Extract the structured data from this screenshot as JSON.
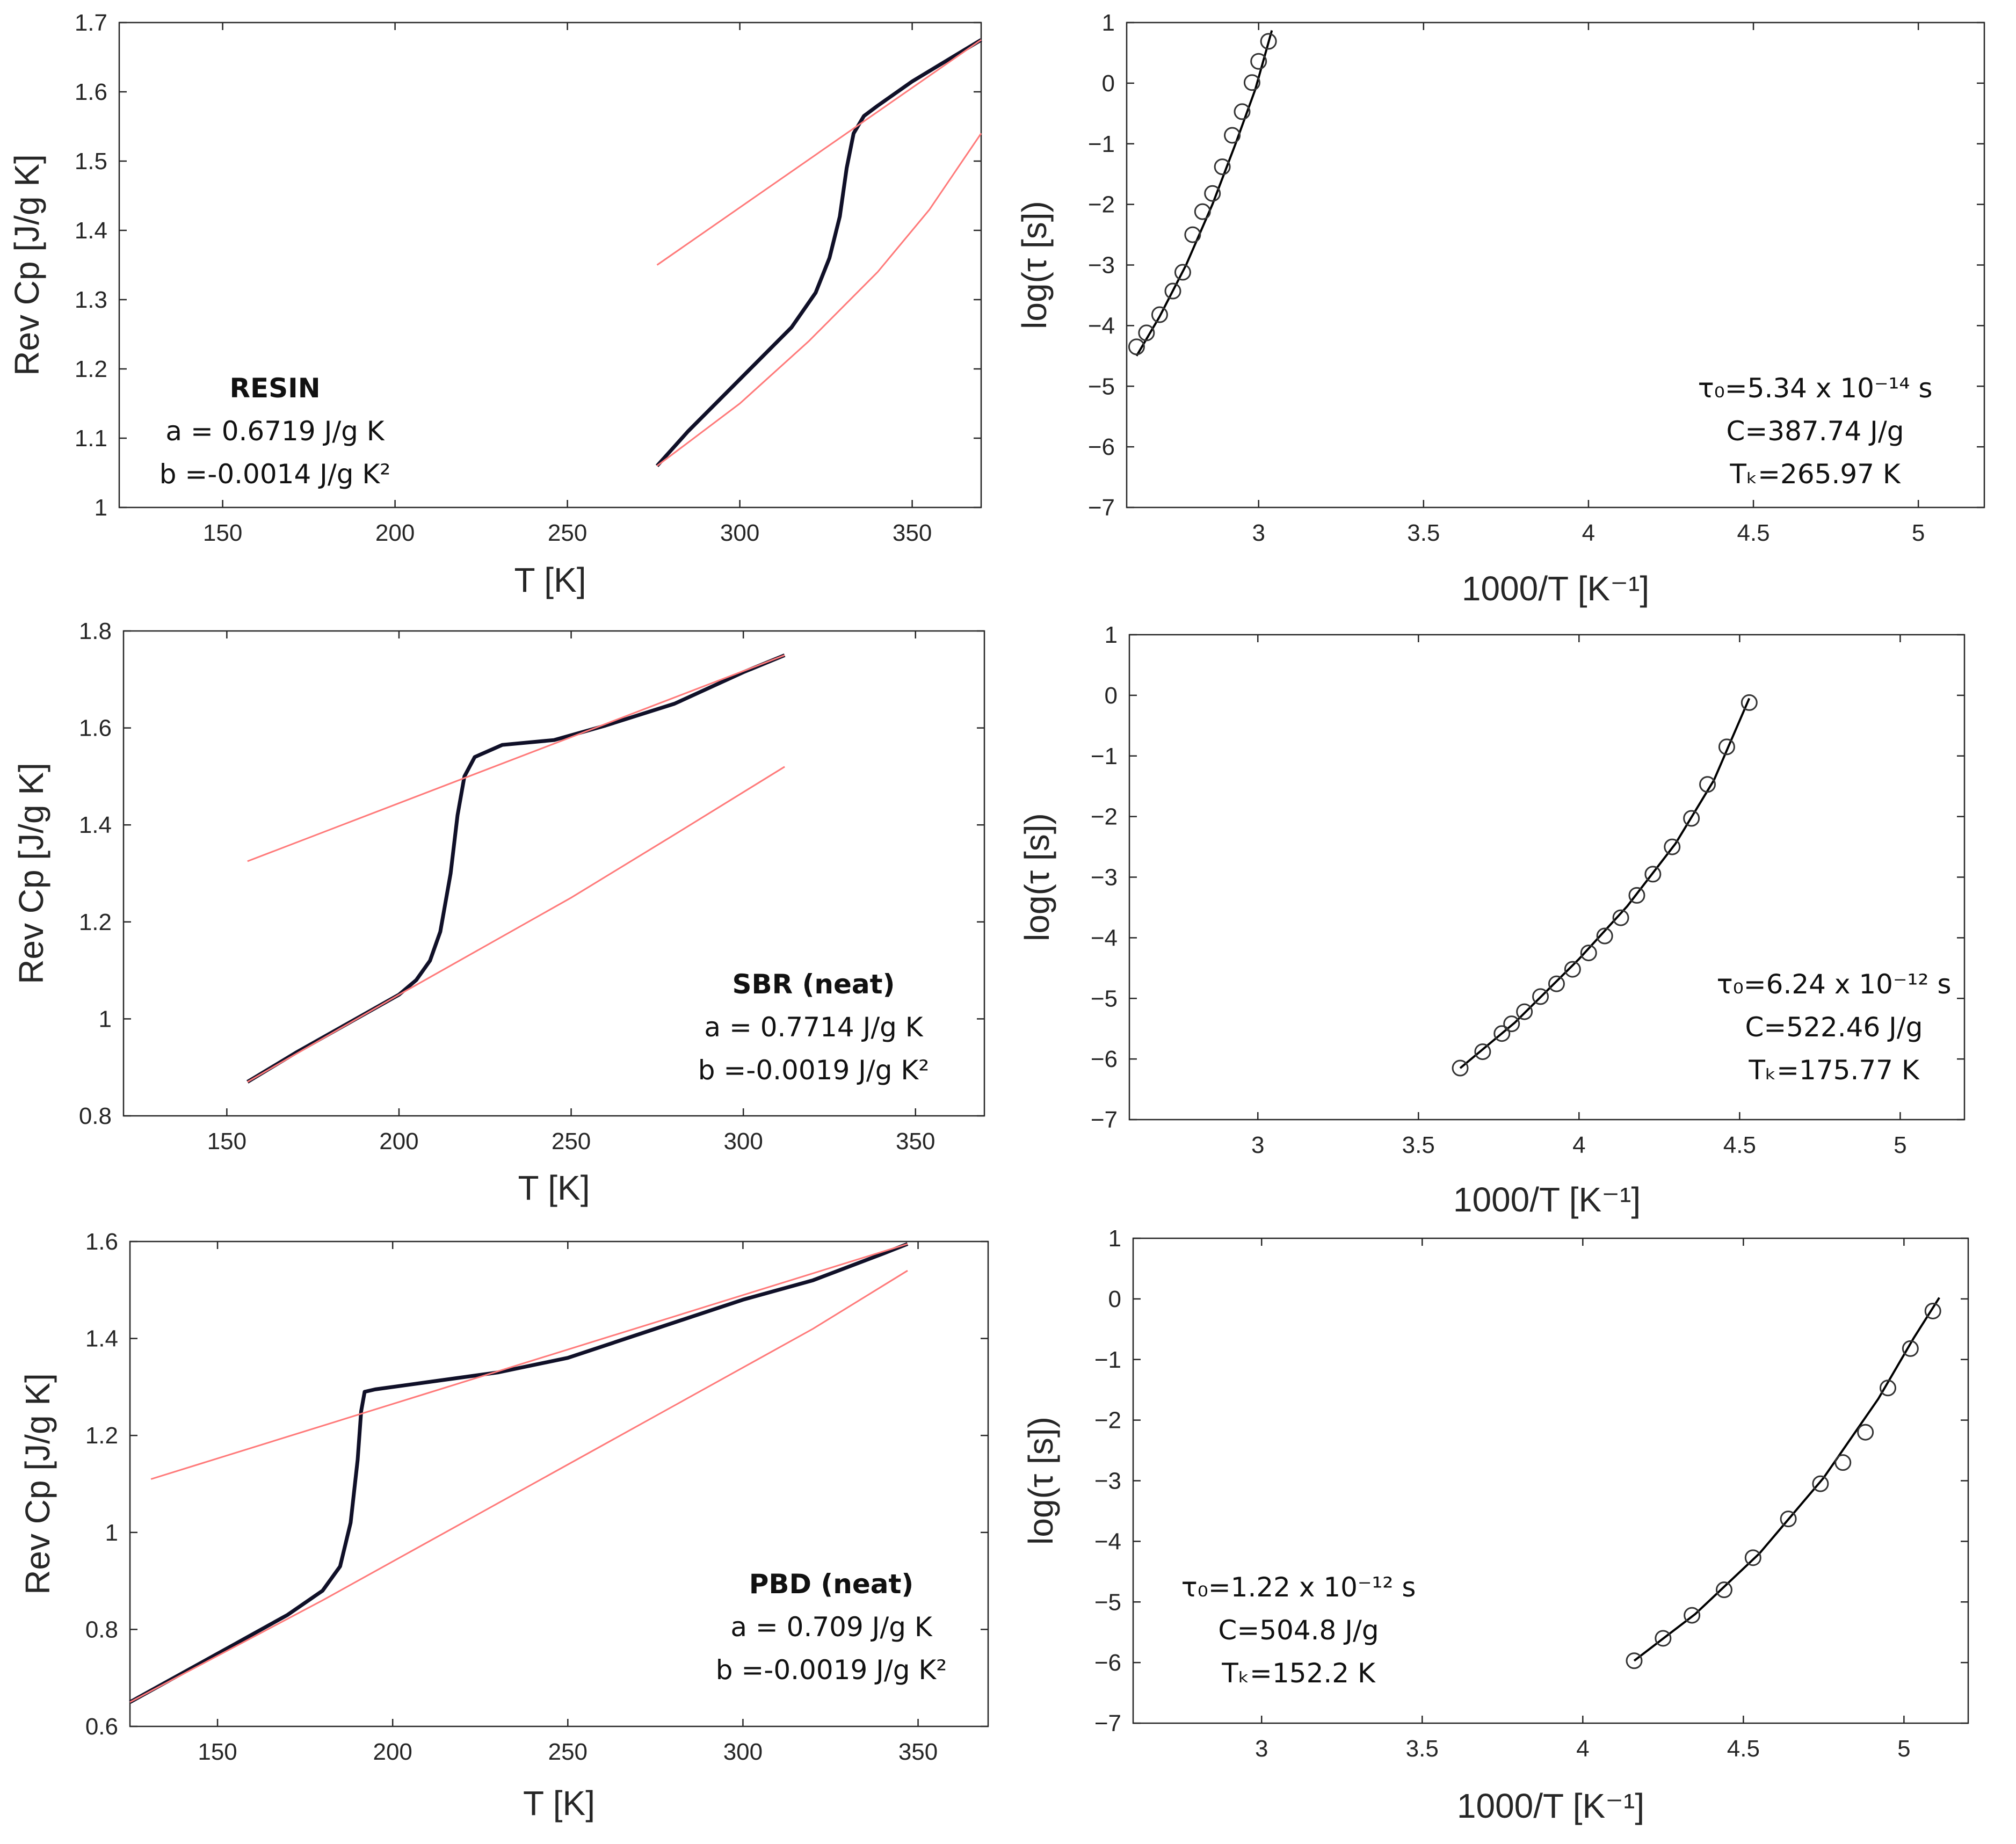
{
  "chart_data": [
    {
      "id": "resin-cp",
      "type": "line",
      "xlabel": "T  [K]",
      "ylabel": "Rev Cp [J/g K]",
      "xlim": [
        120,
        370
      ],
      "ylim": [
        1,
        1.7
      ],
      "xticks": [
        150,
        200,
        250,
        300,
        350
      ],
      "yticks": [
        1,
        1.1,
        1.2,
        1.3,
        1.4,
        1.5,
        1.6,
        1.7
      ],
      "ytick_labels": [
        "1",
        "1.1",
        "1.2",
        "1.3",
        "1.4",
        "1.5",
        "1.6",
        "1.7"
      ],
      "annotation": [
        "RESIN",
        "a = 0.6719 J/g K",
        "b =-0.0014 J/g K²"
      ],
      "series": [
        {
          "name": "measured",
          "x": [
            276,
            285,
            295,
            305,
            315,
            322,
            326,
            329,
            331,
            333,
            336,
            340,
            350,
            360,
            370
          ],
          "y": [
            1.06,
            1.11,
            1.16,
            1.21,
            1.26,
            1.31,
            1.36,
            1.42,
            1.49,
            1.54,
            1.565,
            1.58,
            1.615,
            1.645,
            1.675
          ]
        },
        {
          "name": "liquid fit",
          "x": [
            276,
            370
          ],
          "y": [
            1.35,
            1.675
          ]
        },
        {
          "name": "glass fit",
          "x": [
            276,
            300,
            320,
            340,
            355,
            370
          ],
          "y": [
            1.06,
            1.15,
            1.24,
            1.34,
            1.43,
            1.54
          ]
        }
      ]
    },
    {
      "id": "resin-vft",
      "type": "scatter",
      "xlabel": "1000/T [K⁻¹]",
      "ylabel": "log(τ [s])",
      "xlim": [
        2.6,
        5.2
      ],
      "ylim": [
        -7,
        1
      ],
      "xticks": [
        3,
        3.5,
        4,
        4.5,
        5
      ],
      "yticks": [
        1,
        0,
        -1,
        -2,
        -3,
        -4,
        -5,
        -6,
        -7
      ],
      "ytick_labels": [
        "1",
        "0",
        "−1",
        "−2",
        "−3",
        "−4",
        "−5",
        "−6",
        "−7"
      ],
      "annotation": [
        "τ₀=5.34 x 10⁻¹⁴ s",
        "C=387.74 J/g",
        "Tₖ=265.97 K"
      ],
      "points": {
        "x": [
          2.63,
          2.66,
          2.7,
          2.74,
          2.77,
          2.8,
          2.83,
          2.86,
          2.89,
          2.92,
          2.95,
          2.98,
          3.0,
          3.03
        ],
        "y": [
          -4.35,
          -4.12,
          -3.82,
          -3.43,
          -3.12,
          -2.5,
          -2.12,
          -1.82,
          -1.38,
          -0.86,
          -0.47,
          0.01,
          0.36,
          0.69
        ]
      },
      "fit": {
        "x": [
          2.63,
          2.7,
          2.78,
          2.86,
          2.93,
          2.99,
          3.04
        ],
        "y": [
          -4.5,
          -3.85,
          -3.0,
          -2.0,
          -1.0,
          -0.1,
          0.87
        ]
      }
    },
    {
      "id": "sbr-cp",
      "type": "line",
      "xlabel": "T  [K]",
      "ylabel": "Rev Cp [J/g K]",
      "xlim": [
        120,
        370
      ],
      "ylim": [
        0.8,
        1.8
      ],
      "xticks": [
        150,
        200,
        250,
        300,
        350
      ],
      "yticks": [
        0.8,
        1,
        1.2,
        1.4,
        1.6,
        1.8
      ],
      "ytick_labels": [
        "0.8",
        "1",
        "1.2",
        "1.4",
        "1.6",
        "1.8"
      ],
      "annotation": [
        "SBR  (neat)",
        "a = 0.7714 J/g K",
        "b =-0.0019 J/g K²"
      ],
      "series": [
        {
          "name": "measured",
          "x": [
            156,
            170,
            185,
            200,
            205,
            209,
            212,
            215,
            217,
            219,
            222,
            230,
            245,
            260,
            280,
            300,
            312
          ],
          "y": [
            0.87,
            0.93,
            0.99,
            1.05,
            1.08,
            1.12,
            1.18,
            1.3,
            1.42,
            1.5,
            1.54,
            1.565,
            1.575,
            1.605,
            1.65,
            1.715,
            1.75
          ]
        },
        {
          "name": "liquid fit",
          "x": [
            156,
            312
          ],
          "y": [
            1.325,
            1.75
          ]
        },
        {
          "name": "glass fit",
          "x": [
            156,
            200,
            250,
            280,
            312
          ],
          "y": [
            0.87,
            1.05,
            1.25,
            1.38,
            1.52
          ]
        }
      ]
    },
    {
      "id": "sbr-vft",
      "type": "scatter",
      "xlabel": "1000/T [K⁻¹]",
      "ylabel": "log(τ [s])",
      "xlim": [
        2.6,
        5.2
      ],
      "ylim": [
        -7,
        1
      ],
      "xticks": [
        3,
        3.5,
        4,
        4.5,
        5
      ],
      "yticks": [
        1,
        0,
        -1,
        -2,
        -3,
        -4,
        -5,
        -6,
        -7
      ],
      "ytick_labels": [
        "1",
        "0",
        "−1",
        "−2",
        "−3",
        "−4",
        "−5",
        "−6",
        "−7"
      ],
      "annotation": [
        "τ₀=6.24 x 10⁻¹² s",
        "C=522.46 J/g",
        "Tₖ=175.77 K"
      ],
      "points": {
        "x": [
          3.63,
          3.7,
          3.76,
          3.79,
          3.83,
          3.88,
          3.93,
          3.98,
          4.03,
          4.08,
          4.13,
          4.18,
          4.23,
          4.29,
          4.35,
          4.4,
          4.46,
          4.53
        ],
        "y": [
          -6.15,
          -5.88,
          -5.58,
          -5.42,
          -5.22,
          -4.97,
          -4.76,
          -4.52,
          -4.25,
          -3.97,
          -3.67,
          -3.3,
          -2.95,
          -2.5,
          -2.03,
          -1.47,
          -0.85,
          -0.12
        ]
      },
      "fit": {
        "x": [
          3.63,
          3.8,
          4.0,
          4.15,
          4.3,
          4.42,
          4.53
        ],
        "y": [
          -6.15,
          -5.4,
          -4.35,
          -3.48,
          -2.45,
          -1.4,
          -0.05
        ]
      }
    },
    {
      "id": "pbd-cp",
      "type": "line",
      "xlabel": "T  [K]",
      "ylabel": "Rev Cp [J/g K]",
      "xlim": [
        125,
        370
      ],
      "ylim": [
        0.6,
        1.6
      ],
      "xticks": [
        150,
        200,
        250,
        300,
        350
      ],
      "yticks": [
        0.6,
        0.8,
        1,
        1.2,
        1.4,
        1.6
      ],
      "ytick_labels": [
        "0.6",
        "0.8",
        "1",
        "1.2",
        "1.4",
        "1.6"
      ],
      "annotation": [
        "PBD  (neat)",
        "a = 0.709 J/g K",
        "b =-0.0019 J/g K²"
      ],
      "series": [
        {
          "name": "measured",
          "x": [
            125,
            140,
            155,
            170,
            180,
            185,
            188,
            190,
            191,
            192,
            195,
            210,
            230,
            250,
            275,
            300,
            320,
            340,
            347
          ],
          "y": [
            0.65,
            0.71,
            0.77,
            0.83,
            0.88,
            0.93,
            1.02,
            1.15,
            1.25,
            1.29,
            1.295,
            1.31,
            1.33,
            1.36,
            1.42,
            1.48,
            1.52,
            1.575,
            1.595
          ]
        },
        {
          "name": "liquid fit",
          "x": [
            131,
            347
          ],
          "y": [
            1.11,
            1.595
          ]
        },
        {
          "name": "glass fit",
          "x": [
            125,
            180,
            230,
            280,
            320,
            347
          ],
          "y": [
            0.65,
            0.86,
            1.06,
            1.26,
            1.42,
            1.54
          ]
        }
      ]
    },
    {
      "id": "pbd-vft",
      "type": "scatter",
      "xlabel": "1000/T [K⁻¹]",
      "ylabel": "log(τ [s])",
      "xlim": [
        2.6,
        5.2
      ],
      "ylim": [
        -7,
        1
      ],
      "xticks": [
        3,
        3.5,
        4,
        4.5,
        5
      ],
      "yticks": [
        1,
        0,
        -1,
        -2,
        -3,
        -4,
        -5,
        -6,
        -7
      ],
      "ytick_labels": [
        "1",
        "0",
        "−1",
        "−2",
        "−3",
        "−4",
        "−5",
        "−6",
        "−7"
      ],
      "annotation": [
        "τ₀=1.22 x 10⁻¹² s",
        "C=504.8 J/g",
        "Tₖ=152.2 K"
      ],
      "points": {
        "x": [
          4.16,
          4.25,
          4.34,
          4.44,
          4.53,
          4.64,
          4.74,
          4.81,
          4.88,
          4.95,
          5.02,
          5.09
        ],
        "y": [
          -5.97,
          -5.6,
          -5.22,
          -4.8,
          -4.27,
          -3.63,
          -3.05,
          -2.7,
          -2.2,
          -1.47,
          -0.82,
          -0.2
        ]
      },
      "fit": {
        "x": [
          4.16,
          4.35,
          4.55,
          4.75,
          4.92,
          5.03,
          5.11
        ],
        "y": [
          -5.97,
          -5.2,
          -4.2,
          -2.95,
          -1.65,
          -0.65,
          0.02
        ]
      }
    }
  ]
}
